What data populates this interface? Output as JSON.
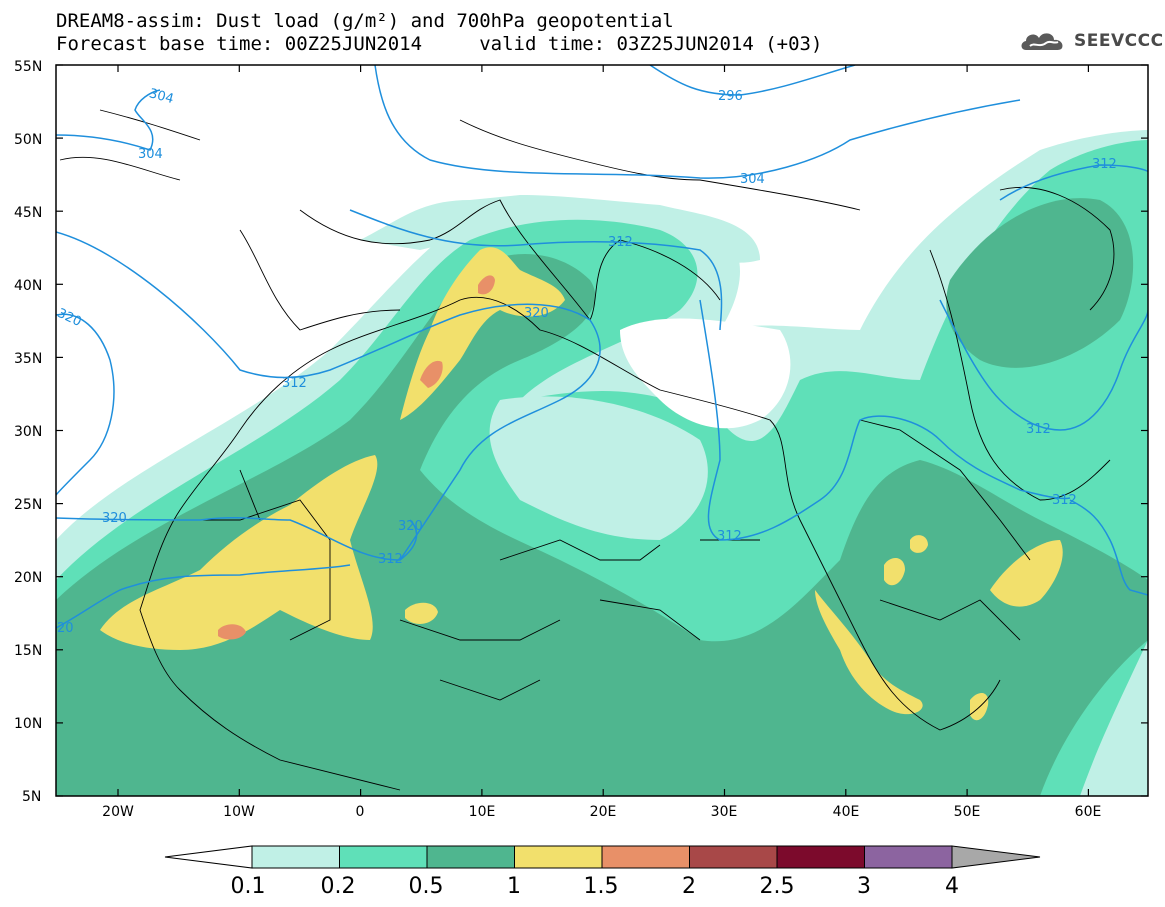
{
  "title": {
    "line1": "DREAM8-assim: Dust load (g/m²) and 700hPa geopotential",
    "line2": "Forecast base time: 00Z25JUN2014     valid time: 03Z25JUN2014 (+03)"
  },
  "logo": {
    "text": "SEEVCCC",
    "icon": "cloud-icon"
  },
  "axes": {
    "lat_labels": [
      "55N",
      "50N",
      "45N",
      "40N",
      "35N",
      "30N",
      "25N",
      "20N",
      "15N",
      "10N",
      "5N"
    ],
    "lon_labels": [
      "20W",
      "10W",
      "0",
      "10E",
      "20E",
      "30E",
      "40E",
      "50E",
      "60E"
    ]
  },
  "contours": {
    "color": "#1f8fdc",
    "labels": [
      "304",
      "304",
      "296",
      "304",
      "312",
      "312",
      "320",
      "320",
      "312",
      "320",
      "312",
      "320",
      "312",
      "312",
      "312",
      "20"
    ]
  },
  "colorbar": {
    "ticks": [
      "0.1",
      "0.2",
      "0.5",
      "1",
      "1.5",
      "2",
      "2.5",
      "3",
      "4"
    ],
    "colors": [
      "#c0f0e6",
      "#5fe0b8",
      "#4fb68f",
      "#f2e06c",
      "#e89068",
      "#a84848",
      "#7c0a2c",
      "#8c64a0",
      "#a8a8a8"
    ]
  },
  "fill_colors": {
    "light": "#c0f0e6",
    "mid": "#5fe0b8",
    "dark": "#4fb68f",
    "yellow": "#f2e06c",
    "orange": "#e89068",
    "red": "#d27060"
  }
}
